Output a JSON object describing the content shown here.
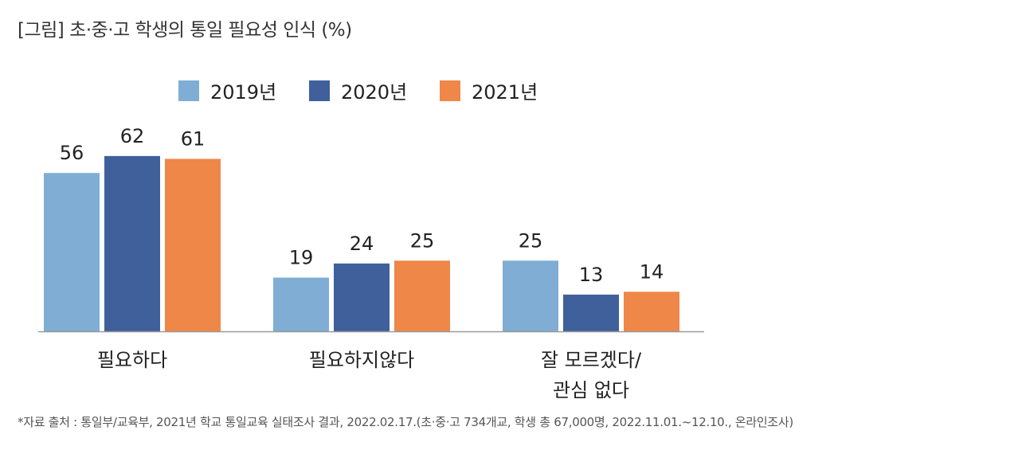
{
  "title": "[그림] 초·중·고 학생의 통일 필요성 인식 (%)",
  "source": "*자료 출처 : 통일부/교육부, 2021년 학교 통일교육 실태조사 결과, 2022.02.17.(초·중·고 734개교, 학생 총 67,000명, 2022.11.01.~12.10., 온라인조사)",
  "colors": {
    "2019": "#7fadd3",
    "2020": "#3f609b",
    "2021": "#ef8748",
    "axis": "#999999"
  },
  "chart_data": {
    "type": "bar",
    "title": "[그림] 초·중·고 학생의 통일 필요성 인식 (%)",
    "categories": [
      "필요하다",
      "필요하지않다",
      "잘 모르겠다/\n관심 없다"
    ],
    "series": [
      {
        "name": "2019년",
        "values": [
          56,
          19,
          25
        ]
      },
      {
        "name": "2020년",
        "values": [
          62,
          24,
          13
        ]
      },
      {
        "name": "2021년",
        "values": [
          61,
          25,
          14
        ]
      }
    ],
    "ylim": [
      0,
      80
    ],
    "legend": "top-center",
    "grid": false,
    "data_labels": true
  }
}
